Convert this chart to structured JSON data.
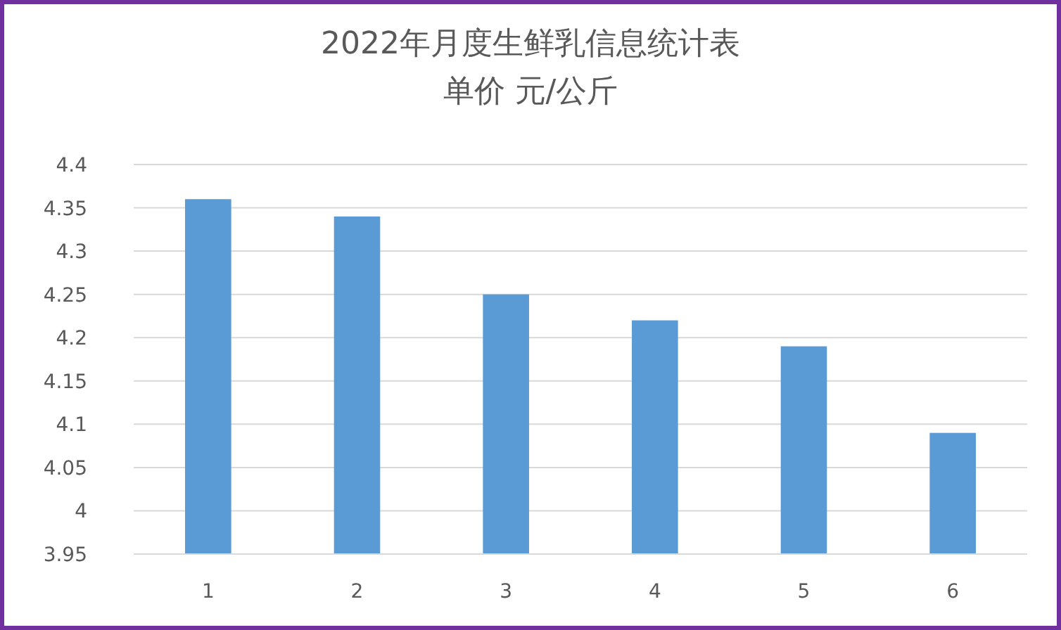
{
  "chart_data": {
    "type": "bar",
    "title": "2022年月度生鲜乳信息统计表",
    "subtitle": "单价  元/公斤",
    "categories": [
      "1",
      "2",
      "3",
      "4",
      "5",
      "6"
    ],
    "values": [
      4.36,
      4.34,
      4.25,
      4.22,
      4.19,
      4.09
    ],
    "color": "#5b9bd5",
    "ylim": [
      3.95,
      4.4
    ],
    "yticks": [
      3.95,
      4,
      4.05,
      4.1,
      4.15,
      4.2,
      4.25,
      4.3,
      4.35,
      4.4
    ],
    "grid": "y"
  }
}
